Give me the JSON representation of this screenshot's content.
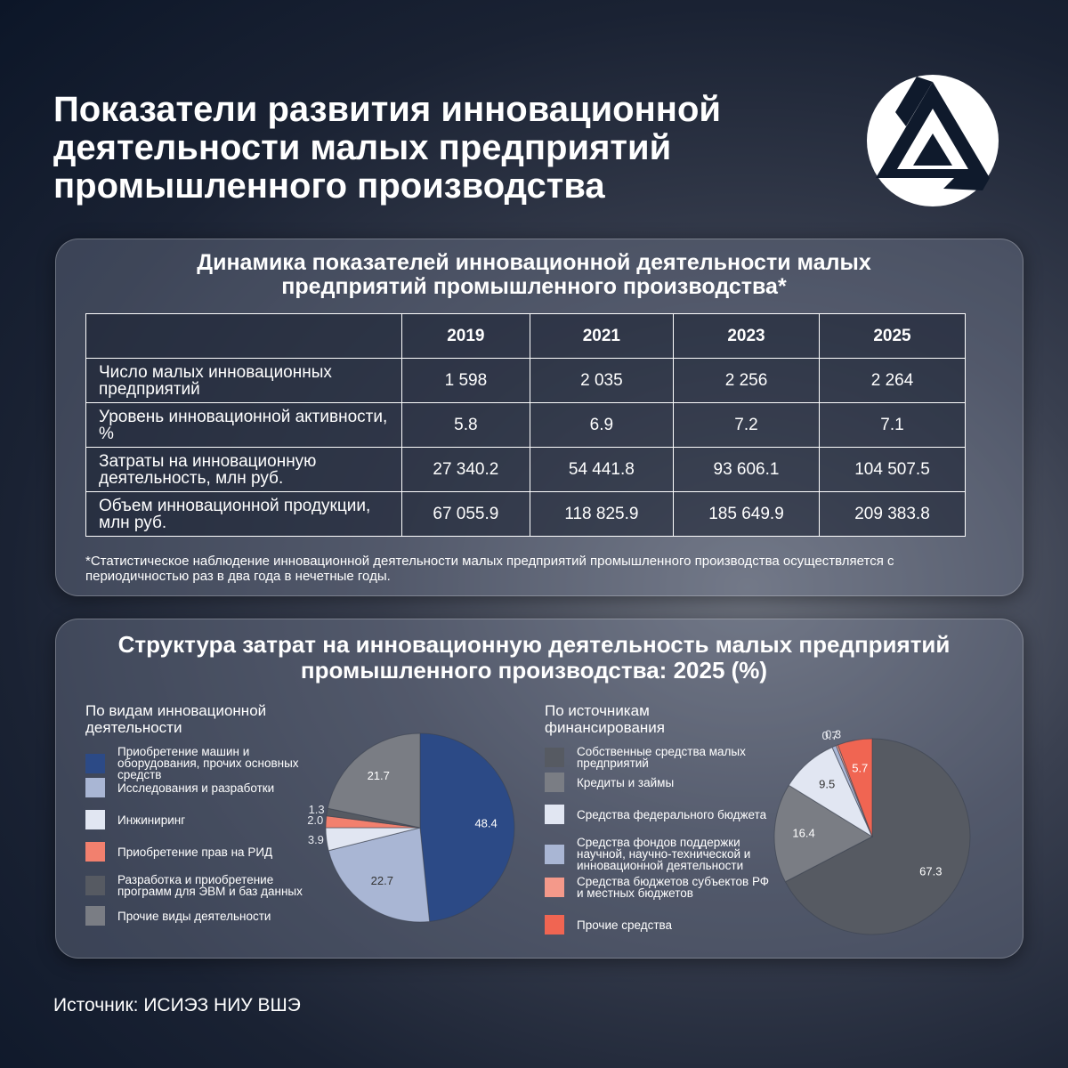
{
  "title": "Показатели развития инновационной деятельности малых предприятий промышленного производства",
  "table": {
    "title": "Динамика показателей инновационной деятельности малых предприятий промышленного производства*",
    "columns": [
      "2019",
      "2021",
      "2023",
      "2025"
    ],
    "rows": [
      [
        "Число малых инновационных предприятий",
        "1 598",
        "2 035",
        "2 256",
        "2 264"
      ],
      [
        "Уровень инновационной активности, %",
        "5.8",
        "6.9",
        "7.2",
        "7.1"
      ],
      [
        "Затраты на инновационную деятельность, млн руб.",
        "27 340.2",
        "54 441.8",
        "93 606.1",
        "104 507.5"
      ],
      [
        "Объем инновационной продукции, млн руб.",
        "67 055.9",
        "118 825.9",
        "185 649.9",
        "209 383.8"
      ]
    ]
  },
  "footnote": "*Статистическое наблюдение инновационной деятельности малых предприятий промышленного производства осуществляется с периодичностью раз в два года в нечетные годы.",
  "section_title": "Структура затрат на инновационную деятельность малых предприятий промышленного производства: 2025 (%)",
  "chart_data": [
    {
      "type": "pie",
      "subtitle": "По видам инновационной деятельности",
      "categories": [
        "Приобретение машин и оборудования, прочих основных средств",
        "Исследования и разработки",
        "Инжиниринг",
        "Приобретение прав на РИД",
        "Разработка и приобретение программ для ЭВМ и баз данных",
        "Прочие виды деятельности"
      ],
      "values": [
        48.4,
        22.7,
        3.9,
        2.0,
        1.3,
        21.7
      ],
      "value_labels": [
        "48.4",
        "22.7",
        "3.9",
        "2.0",
        "1.3",
        "21.7"
      ],
      "colors": [
        "#2c4a86",
        "#a9b6d4",
        "#e1e6f2",
        "#f2806e",
        "#565a62",
        "#7a7d84"
      ]
    },
    {
      "type": "pie",
      "subtitle": "По источникам финансирования",
      "categories": [
        "Собственные средства малых предприятий",
        "Кредиты и займы",
        "Средства федерального бюджета",
        "Средства фондов поддержки научной, научно-технической и инновационной деятельности",
        "Средства бюджетов субъектов РФ и местных бюджетов",
        "Прочие средства"
      ],
      "values": [
        67.3,
        16.4,
        9.5,
        0.7,
        0.3,
        5.7
      ],
      "colors": [
        "#565a62",
        "#7a7d84",
        "#e1e6f2",
        "#a9b6d4",
        "#f4998a",
        "#f06552"
      ]
    }
  ],
  "source": "Источник: ИСИЭЗ НИУ ВШЭ"
}
